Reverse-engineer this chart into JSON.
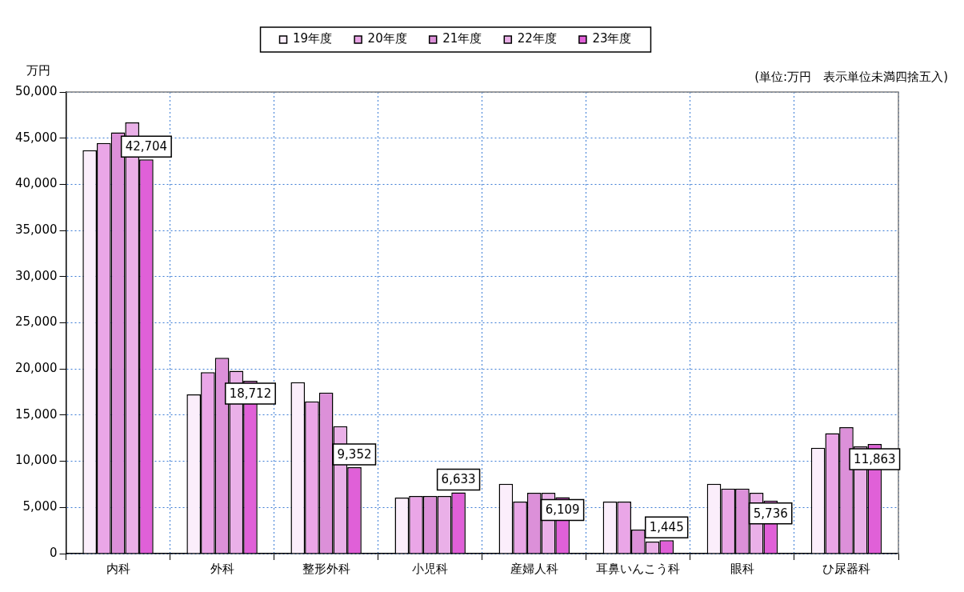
{
  "chart_data": {
    "type": "bar",
    "ylabel": "万円",
    "annotations": [
      "(単位:万円　表示単位未満四捨五入)"
    ],
    "categories": [
      "内科",
      "外科",
      "整形外科",
      "小児科",
      "産婦人科",
      "耳鼻いんこう科",
      "眼科",
      "ひ尿器科"
    ],
    "series": [
      {
        "name": "19年度",
        "color": "#fbeefb",
        "values": [
          43700,
          17250,
          18560,
          6060,
          7550,
          5640,
          7550,
          11450
        ]
      },
      {
        "name": "20年度",
        "color": "#eaa6e7",
        "values": [
          44470,
          19640,
          16490,
          6250,
          5640,
          5640,
          7050,
          13050
        ]
      },
      {
        "name": "21年度",
        "color": "#dc90d9",
        "values": [
          45630,
          21210,
          17430,
          6250,
          6590,
          2600,
          7050,
          13700
        ]
      },
      {
        "name": "22年度",
        "color": "#eab0e8",
        "values": [
          46700,
          19800,
          13810,
          6250,
          6590,
          1300,
          6590,
          11620
        ]
      },
      {
        "name": "23年度",
        "color": "#e060d8",
        "values": [
          42704,
          18712,
          9352,
          6633,
          6109,
          1445,
          5736,
          11863
        ],
        "value_labels": [
          "42,704",
          "18,712",
          "9,352",
          "6,633",
          "6,109",
          "1,445",
          "5,736",
          "11,863"
        ]
      }
    ],
    "ylim": [
      0,
      50000
    ],
    "yticks": [
      {
        "value": 0,
        "label": "0"
      },
      {
        "value": 5000,
        "label": "5,000"
      },
      {
        "value": 10000,
        "label": "10,000"
      },
      {
        "value": 15000,
        "label": "15,000"
      },
      {
        "value": 20000,
        "label": "20,000"
      },
      {
        "value": 25000,
        "label": "25,000"
      },
      {
        "value": 30000,
        "label": "30,000"
      },
      {
        "value": 35000,
        "label": "35,000"
      },
      {
        "value": 40000,
        "label": "40,000"
      },
      {
        "value": 45000,
        "label": "45,000"
      },
      {
        "value": 50000,
        "label": "50,000"
      }
    ],
    "grid": true,
    "legend": "top"
  }
}
